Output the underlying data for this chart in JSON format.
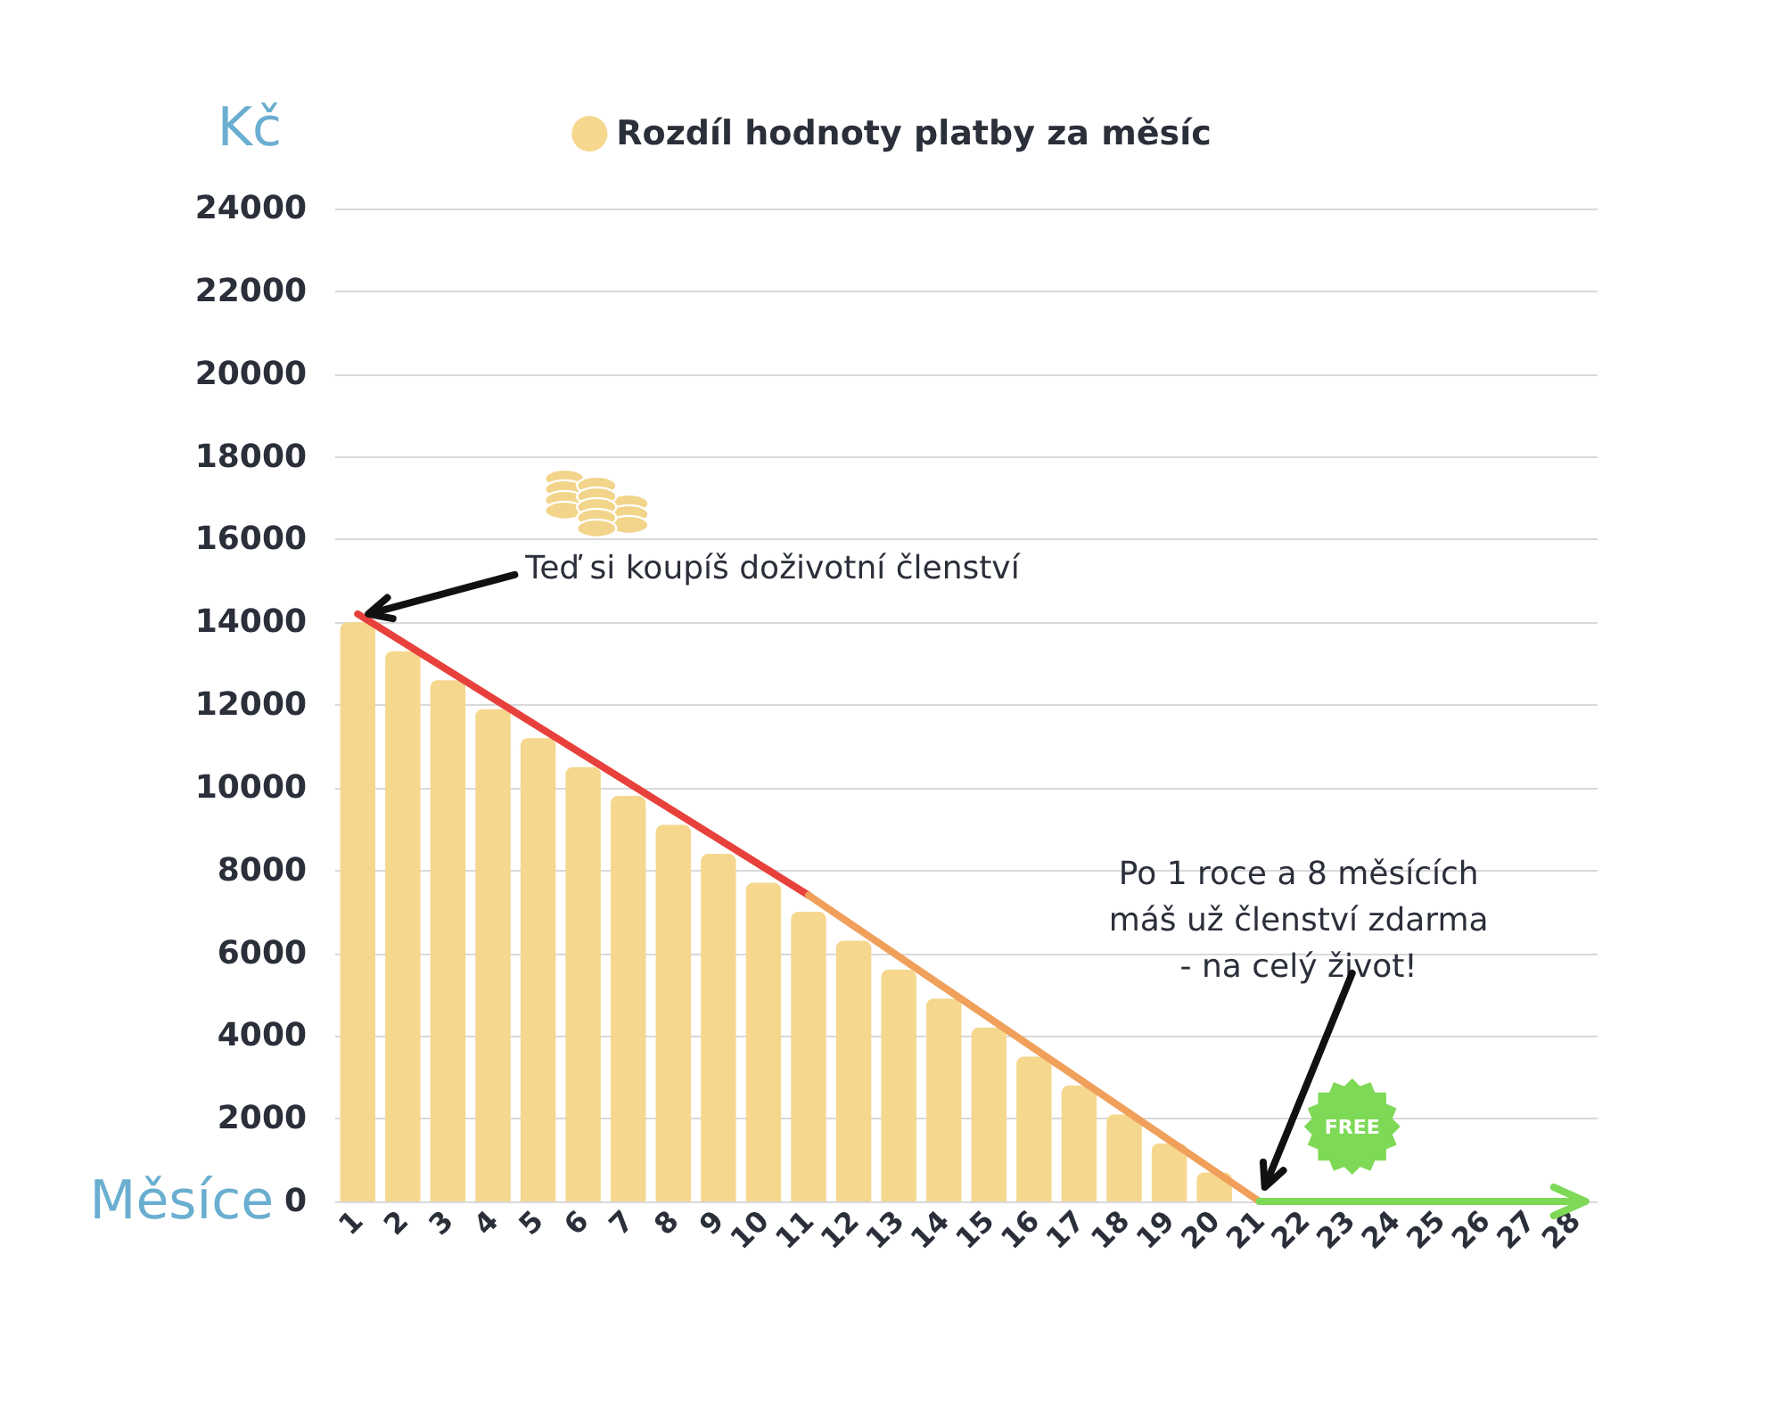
{
  "chart_data": {
    "type": "bar",
    "ylabel": "Kč",
    "xlabel": "Měsíce",
    "categories": [
      "1",
      "2",
      "3",
      "4",
      "5",
      "6",
      "7",
      "8",
      "9",
      "10",
      "11",
      "12",
      "13",
      "14",
      "15",
      "16",
      "17",
      "18",
      "19",
      "20",
      "21",
      "22",
      "23",
      "24",
      "25",
      "26",
      "27",
      "28"
    ],
    "series": [
      {
        "name": "Rozdíl hodnoty platby za měsíc",
        "color": "#f5d78e",
        "values": [
          14000,
          13300,
          12600,
          11900,
          11200,
          10500,
          9800,
          9100,
          8400,
          7700,
          7000,
          6300,
          5600,
          4900,
          4200,
          3500,
          2800,
          2100,
          1400,
          700,
          null,
          null,
          null,
          null,
          null,
          null,
          null,
          null
        ]
      },
      {
        "type": "line",
        "color": "#e8413c",
        "x": [
          "1",
          "11"
        ],
        "values": [
          14200,
          7400
        ]
      },
      {
        "type": "line",
        "color": "#f0a05a",
        "x": [
          "11",
          "21"
        ],
        "values": [
          7400,
          0
        ]
      },
      {
        "type": "line",
        "color": "#7ed957",
        "x": [
          "21",
          "28"
        ],
        "values": [
          0,
          0
        ]
      }
    ],
    "ylim": [
      0,
      24000
    ],
    "yticks": [
      0,
      2000,
      4000,
      6000,
      8000,
      10000,
      12000,
      14000,
      16000,
      18000,
      20000,
      22000,
      24000
    ],
    "grid": "y",
    "legend": "top",
    "annotations": [
      {
        "text": "Teď si koupíš doživotní členství",
        "x": "1",
        "y": 14200
      },
      "Po 1 roce a 8 měsících\nmáš už členství zdarma\n- na celý život!",
      "FREE"
    ]
  }
}
